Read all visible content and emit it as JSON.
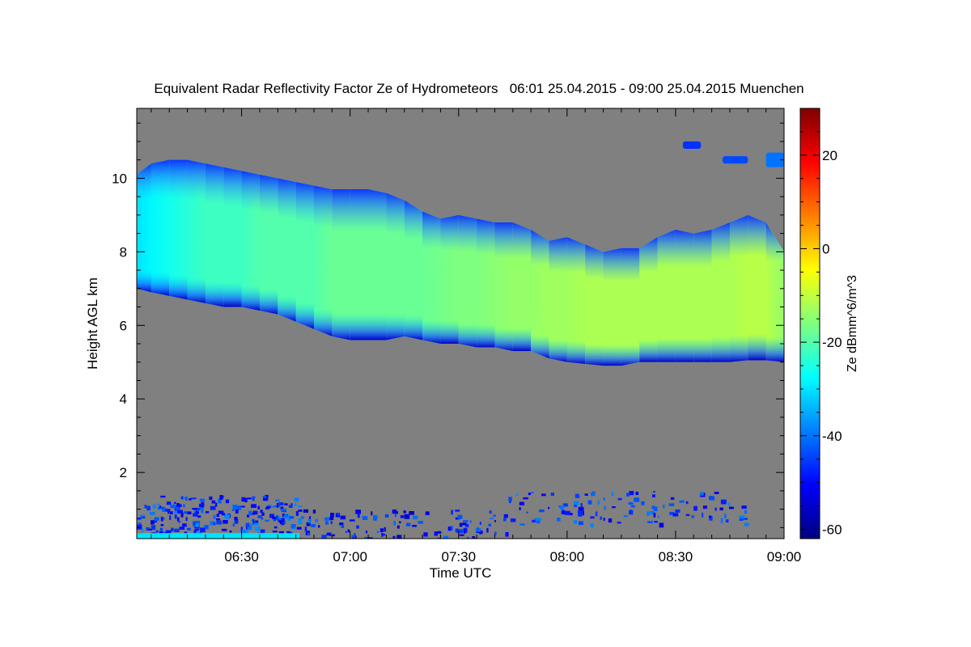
{
  "chart_data": {
    "type": "heatmap",
    "title": "Equivalent Radar Reflectivity Factor Ze of Hydrometeors   06:01 25.04.2015 - 09:00 25.04.2015 Muenchen",
    "xlabel": "Time UTC",
    "ylabel": "Height AGL km",
    "colorbar_label": "Ze dBmm^6/m^3",
    "xlim_minutes": [
      361,
      540
    ],
    "ylim": [
      0.2,
      11.9
    ],
    "clim": [
      -62,
      30
    ],
    "x_ticks": [
      {
        "minute": 390,
        "label": "06:30"
      },
      {
        "minute": 420,
        "label": "07:00"
      },
      {
        "minute": 450,
        "label": "07:30"
      },
      {
        "minute": 480,
        "label": "08:00"
      },
      {
        "minute": 510,
        "label": "08:30"
      },
      {
        "minute": 540,
        "label": "09:00"
      }
    ],
    "y_ticks": [
      {
        "value": 2,
        "label": "2"
      },
      {
        "value": 4,
        "label": "4"
      },
      {
        "value": 6,
        "label": "6"
      },
      {
        "value": 8,
        "label": "8"
      },
      {
        "value": 10,
        "label": "10"
      }
    ],
    "colorbar_ticks": [
      {
        "value": 20,
        "label": "20"
      },
      {
        "value": 0,
        "label": "0"
      },
      {
        "value": -20,
        "label": "-20"
      },
      {
        "value": -40,
        "label": "-40"
      },
      {
        "value": -60,
        "label": "-60"
      }
    ],
    "colormap": [
      "#00007f",
      "#0000ff",
      "#007fff",
      "#00ffff",
      "#7fff7f",
      "#ffff00",
      "#ff7f00",
      "#ff0000",
      "#7f0000"
    ],
    "background_color": "#808080",
    "cloud_layer": {
      "x": [
        361,
        365,
        370,
        375,
        380,
        385,
        390,
        395,
        400,
        405,
        410,
        415,
        420,
        425,
        430,
        435,
        440,
        445,
        450,
        455,
        460,
        465,
        470,
        475,
        480,
        485,
        490,
        495,
        500,
        505,
        510,
        515,
        520,
        525,
        530,
        535,
        540
      ],
      "top_km": [
        10.1,
        10.4,
        10.5,
        10.5,
        10.4,
        10.3,
        10.2,
        10.1,
        10.0,
        9.9,
        9.8,
        9.7,
        9.7,
        9.7,
        9.6,
        9.4,
        9.1,
        8.9,
        9.0,
        8.9,
        8.8,
        8.8,
        8.6,
        8.3,
        8.4,
        8.2,
        8.0,
        8.1,
        8.1,
        8.4,
        8.6,
        8.5,
        8.6,
        8.8,
        9.0,
        8.8,
        8.0
      ],
      "base_km": [
        7.0,
        6.9,
        6.8,
        6.7,
        6.6,
        6.5,
        6.5,
        6.4,
        6.3,
        6.1,
        5.9,
        5.7,
        5.6,
        5.6,
        5.6,
        5.7,
        5.6,
        5.5,
        5.5,
        5.4,
        5.4,
        5.3,
        5.3,
        5.1,
        5.0,
        4.95,
        4.9,
        4.9,
        5.0,
        5.0,
        5.0,
        5.0,
        5.0,
        5.0,
        5.05,
        5.05,
        5.0
      ],
      "core_dbz": [
        -30,
        -28,
        -26,
        -24,
        -22,
        -22,
        -22,
        -20,
        -20,
        -20,
        -20,
        -18,
        -18,
        -18,
        -18,
        -18,
        -18,
        -17,
        -16,
        -16,
        -15,
        -14,
        -14,
        -13,
        -13,
        -12,
        -12,
        -12,
        -12,
        -12,
        -12,
        -12,
        -12,
        -12,
        -11,
        -11,
        -14
      ]
    },
    "upper_cells": [
      {
        "x": [
          523,
          530
        ],
        "top_km": 10.6,
        "base_km": 10.4,
        "dbz": -44
      },
      {
        "x": [
          512,
          517
        ],
        "top_km": 11.0,
        "base_km": 10.8,
        "dbz": -46
      },
      {
        "x": [
          535,
          540
        ],
        "top_km": 10.7,
        "base_km": 10.3,
        "dbz": -40
      }
    ],
    "near_surface_echoes": [
      {
        "x": [
          361,
          406
        ],
        "top_km": 1.4,
        "base_km": 0.2,
        "dbz": -45
      },
      {
        "x": [
          406,
          463
        ],
        "top_km": 1.0,
        "base_km": 0.2,
        "dbz": -48
      },
      {
        "x": [
          463,
          530
        ],
        "top_km": 1.5,
        "base_km": 0.6,
        "dbz": -46
      }
    ]
  }
}
